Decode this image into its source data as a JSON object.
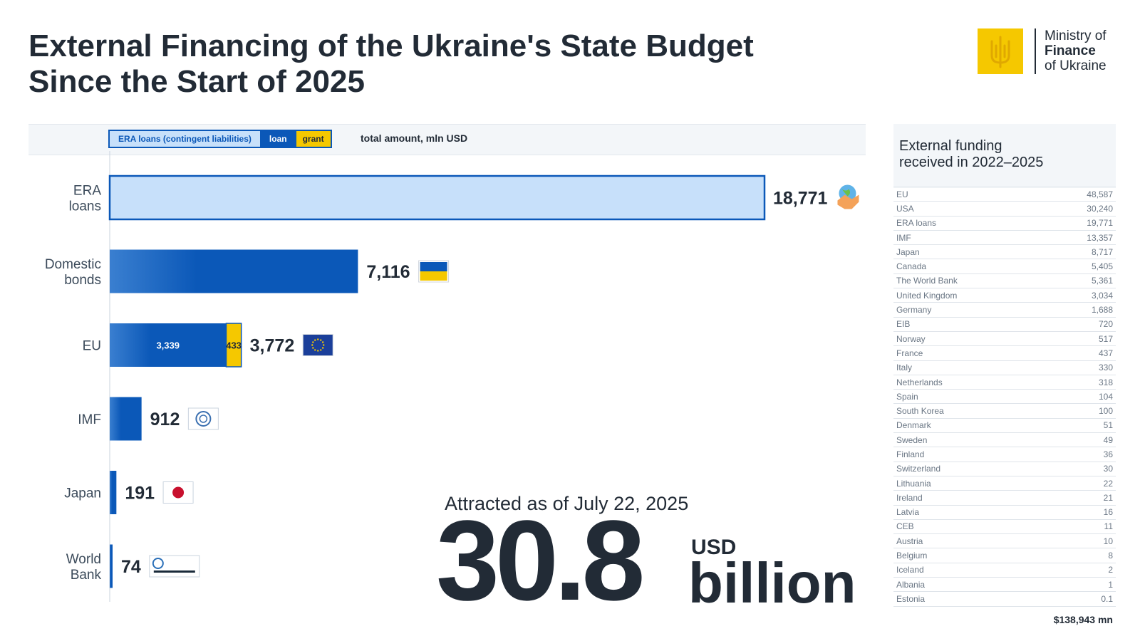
{
  "header": {
    "title_line1": "External Financing of the Ukraine's State Budget",
    "title_line2": "Since the Start of 2025"
  },
  "logo": {
    "line1": "Ministry of",
    "line2": "Finance",
    "line3": "of Ukraine"
  },
  "legend": {
    "era": "ERA loans (contingent liabilities)",
    "loan": "loan",
    "grant": "grant",
    "total": "total amount, mln USD"
  },
  "colors": {
    "era_fill": "#c7e0fa",
    "loan": "#0b58b8",
    "grant": "#f5c800",
    "text": "#222b36"
  },
  "chart_data": {
    "type": "bar",
    "orientation": "horizontal",
    "stacked": true,
    "categories": [
      "ERA\nloans",
      "Domestic\nbonds",
      "EU",
      "IMF",
      "Japan",
      "World\nBank"
    ],
    "series": [
      {
        "name": "ERA loans (contingent liabilities)",
        "values": [
          18771,
          0,
          0,
          0,
          0,
          0
        ]
      },
      {
        "name": "loan",
        "values": [
          0,
          7116,
          3339,
          912,
          191,
          74
        ]
      },
      {
        "name": "grant",
        "values": [
          0,
          0,
          433,
          0,
          0,
          0
        ]
      }
    ],
    "totals": [
      "18,771",
      "7,116",
      "3,772",
      "912",
      "191",
      "74"
    ],
    "inner_labels": {
      "EU": {
        "loan": "3,339",
        "grant": "433"
      }
    },
    "icons": [
      "handshake-globe-icon",
      "ukraine-flag-icon",
      "eu-flag-icon",
      "imf-logo-icon",
      "japan-flag-icon",
      "world-bank-logo-icon"
    ],
    "xlim": [
      0,
      19000
    ],
    "unit_label": "total amount, mln USD",
    "grid": false,
    "legend_position": "top"
  },
  "summary": {
    "attracted_label": "Attracted as of July 22, 2025",
    "amount": "30.8",
    "currency": "USD",
    "unit": "billion"
  },
  "side_table": {
    "title_line1": "External funding",
    "title_line2": "received in 2022–2025",
    "rows": [
      {
        "name": "EU",
        "value": "48,587"
      },
      {
        "name": "USA",
        "value": "30,240"
      },
      {
        "name": "ERA loans",
        "value": "19,771"
      },
      {
        "name": "IMF",
        "value": "13,357"
      },
      {
        "name": "Japan",
        "value": "8,717"
      },
      {
        "name": "Canada",
        "value": "5,405"
      },
      {
        "name": "The World Bank",
        "value": "5,361"
      },
      {
        "name": "United Kingdom",
        "value": "3,034"
      },
      {
        "name": "Germany",
        "value": "1,688"
      },
      {
        "name": "EIB",
        "value": "720"
      },
      {
        "name": "Norway",
        "value": "517"
      },
      {
        "name": "France",
        "value": "437"
      },
      {
        "name": "Italy",
        "value": "330"
      },
      {
        "name": "Netherlands",
        "value": "318"
      },
      {
        "name": "Spain",
        "value": "104"
      },
      {
        "name": "South Korea",
        "value": "100"
      },
      {
        "name": "Denmark",
        "value": "51"
      },
      {
        "name": "Sweden",
        "value": "49"
      },
      {
        "name": "Finland",
        "value": "36"
      },
      {
        "name": "Switzerland",
        "value": "30"
      },
      {
        "name": "Lithuania",
        "value": "22"
      },
      {
        "name": "Ireland",
        "value": "21"
      },
      {
        "name": "Latvia",
        "value": "16"
      },
      {
        "name": "CEB",
        "value": "11"
      },
      {
        "name": "Austria",
        "value": "10"
      },
      {
        "name": "Belgium",
        "value": "8"
      },
      {
        "name": "Iceland",
        "value": "2"
      },
      {
        "name": "Albania",
        "value": "1"
      },
      {
        "name": "Estonia",
        "value": "0.1"
      }
    ],
    "total": "$138,943 mn"
  }
}
